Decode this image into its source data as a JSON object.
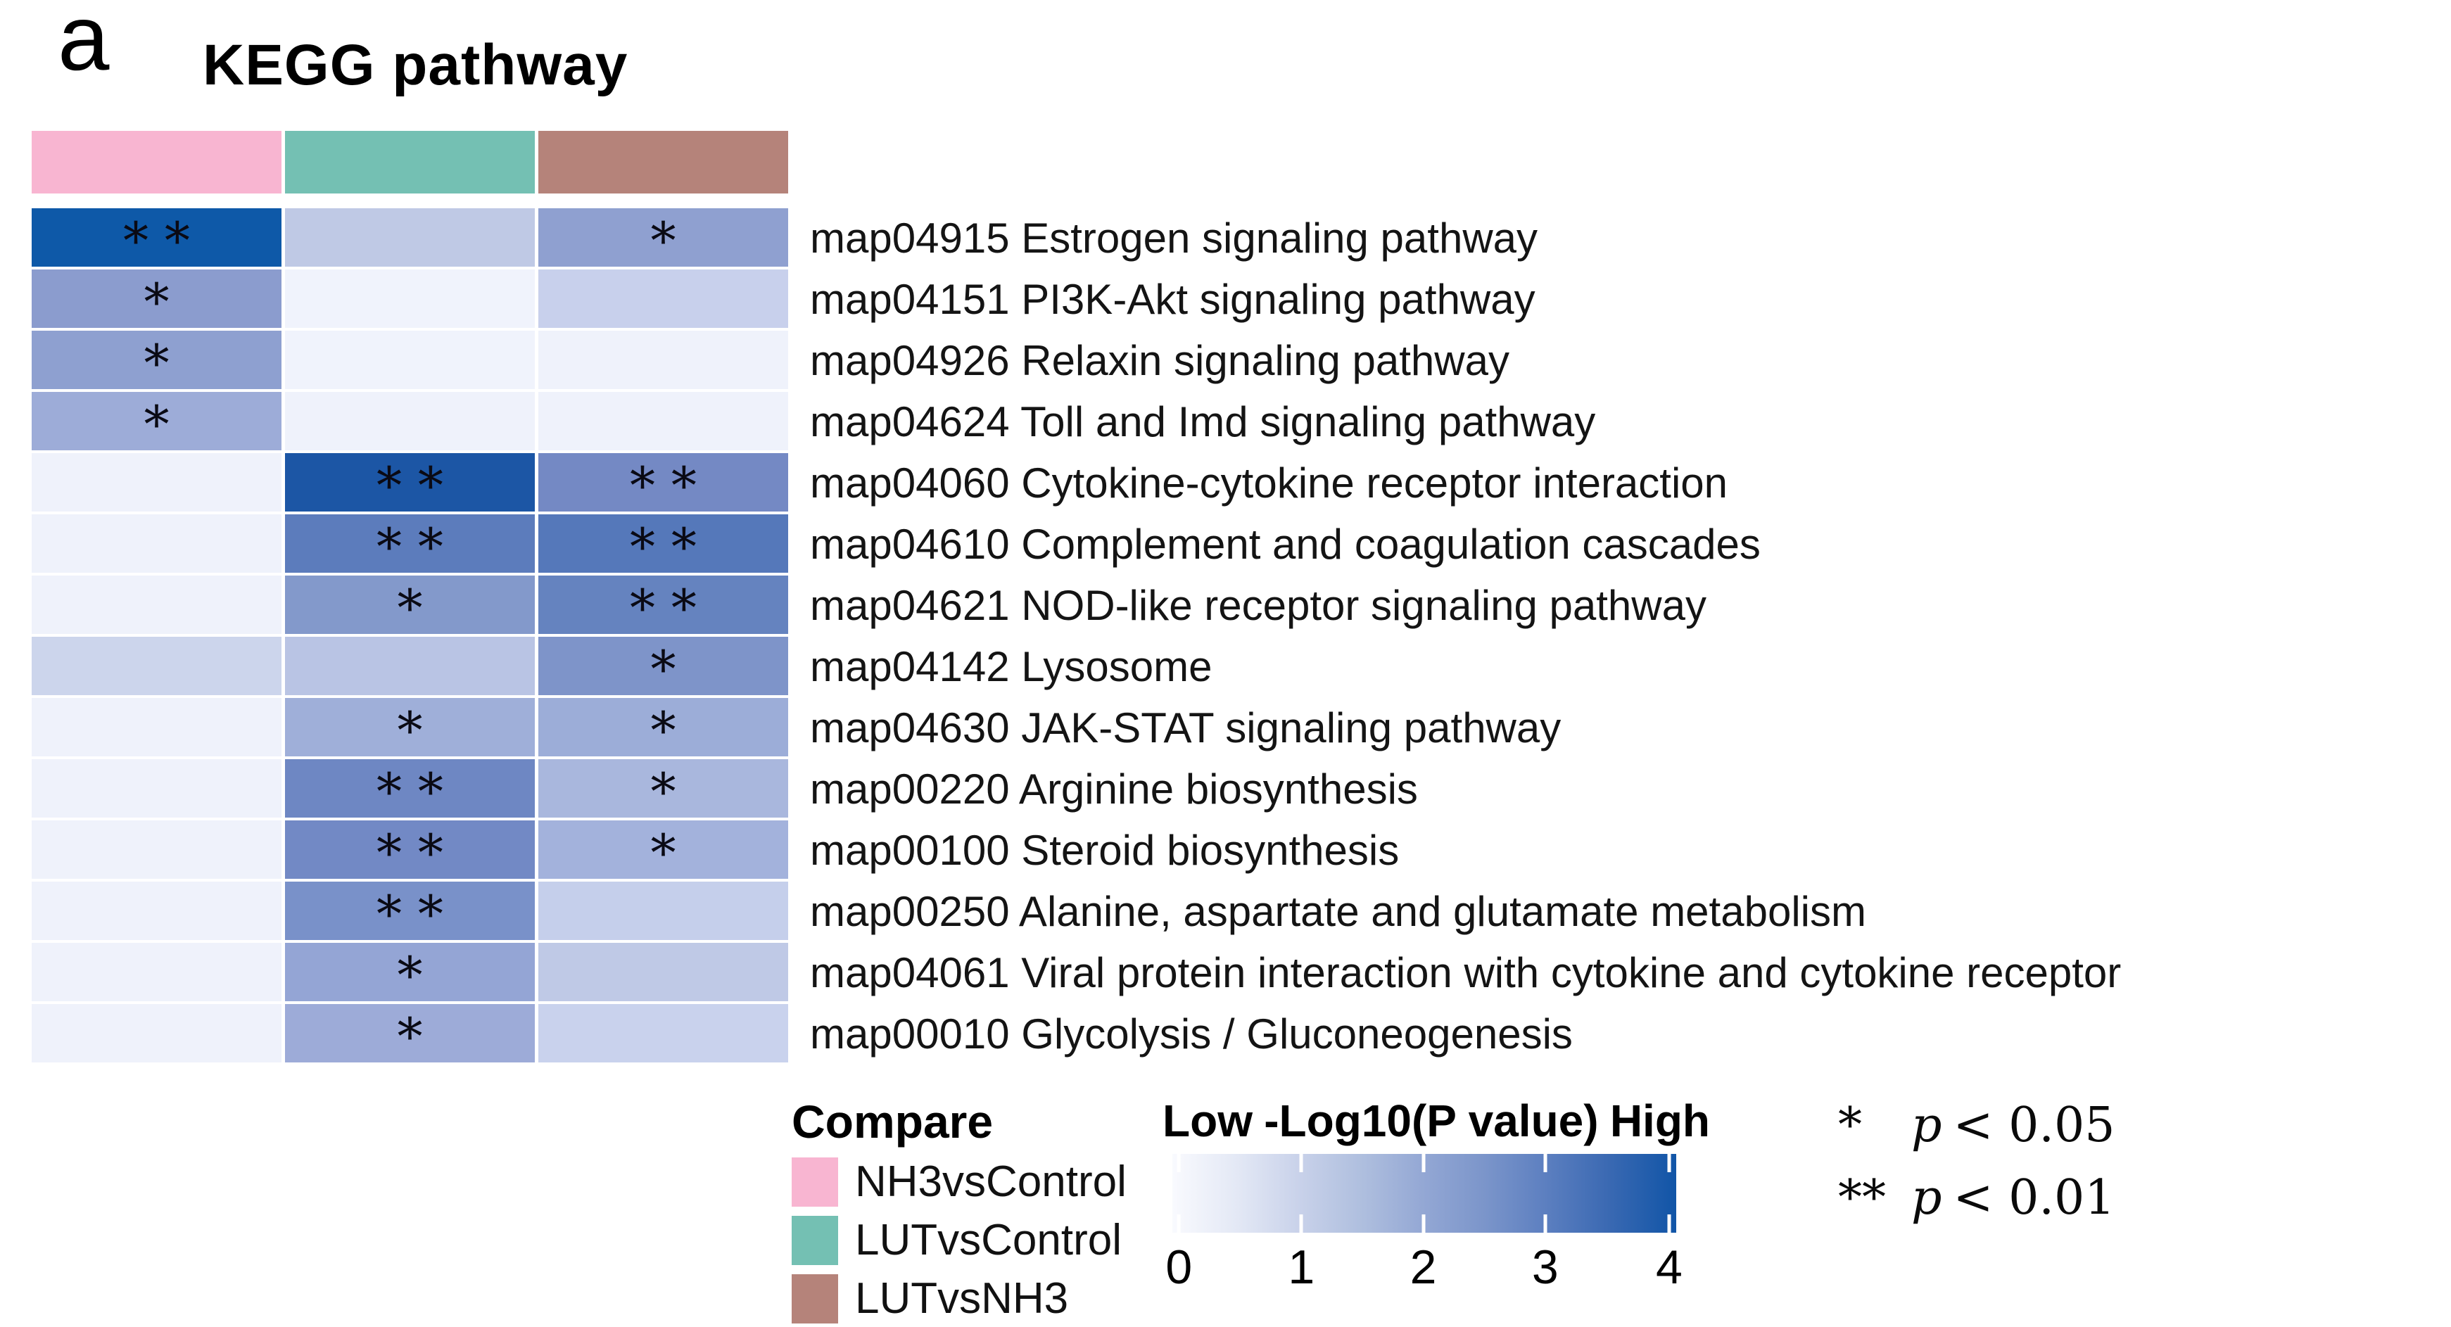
{
  "panel_label": "a",
  "title": "KEGG pathway",
  "columns": [
    {
      "name": "NH3vsControl",
      "color": "#F8B5D1"
    },
    {
      "name": "LUTvsControl",
      "color": "#74C0B3"
    },
    {
      "name": "LUTvsNH3",
      "color": "#B5837A"
    }
  ],
  "heatmap_rows": [
    {
      "label": "map04915 Estrogen signaling pathway",
      "colors": [
        "#0E59A8",
        "#BFC9E5",
        "#8FA0D0"
      ],
      "markers": [
        "**",
        "",
        "*"
      ]
    },
    {
      "label": "map04151 PI3K-Akt signaling pathway",
      "colors": [
        "#8B9CCE",
        "#F0F3FC",
        "#C8D0EC"
      ],
      "markers": [
        "*",
        "",
        ""
      ]
    },
    {
      "label": "map04926 Relaxin signaling pathway",
      "colors": [
        "#8EA0D0",
        "#F0F3FC",
        "#EFF2FB"
      ],
      "markers": [
        "*",
        "",
        ""
      ]
    },
    {
      "label": "map04624 Toll and Imd signaling pathway",
      "colors": [
        "#9DACD8",
        "#EFF2FB",
        "#EFF2FB"
      ],
      "markers": [
        "*",
        "",
        ""
      ]
    },
    {
      "label": "map04060 Cytokine-cytokine receptor interaction",
      "colors": [
        "#EFF2FB",
        "#1C56A5",
        "#7489C4"
      ],
      "markers": [
        "",
        "**",
        "**"
      ]
    },
    {
      "label": "map04610 Complement and coagulation cascades",
      "colors": [
        "#EFF2FB",
        "#5C7CBC",
        "#5578BA"
      ],
      "markers": [
        "",
        "**",
        "**"
      ]
    },
    {
      "label": "map04621 NOD-like receptor signaling pathway",
      "colors": [
        "#EFF2FB",
        "#8399CB",
        "#6583BF"
      ],
      "markers": [
        "",
        "*",
        "**"
      ]
    },
    {
      "label": "map04142 Lysosome",
      "colors": [
        "#CCD5EC",
        "#B9C4E4",
        "#7E94C9"
      ],
      "markers": [
        "",
        "",
        "*"
      ]
    },
    {
      "label": "map04630 JAK-STAT signaling pathway",
      "colors": [
        "#EFF2FB",
        "#9FAFD9",
        "#9CADD8"
      ],
      "markers": [
        "",
        "*",
        "*"
      ]
    },
    {
      "label": "map00220 Arginine biosynthesis",
      "colors": [
        "#EFF2FB",
        "#6E87C3",
        "#A9B7DD"
      ],
      "markers": [
        "",
        "**",
        "*"
      ]
    },
    {
      "label": "map00100 Steroid biosynthesis",
      "colors": [
        "#EFF2FB",
        "#7289C5",
        "#A3B2DC"
      ],
      "markers": [
        "",
        "**",
        "*"
      ]
    },
    {
      "label": "map00250 Alanine, aspartate and glutamate metabolism",
      "colors": [
        "#EFF2FB",
        "#7991C9",
        "#C5CFEB"
      ],
      "markers": [
        "",
        "**",
        ""
      ]
    },
    {
      "label": "map04061 Viral protein interaction with cytokine and cytokine receptor",
      "colors": [
        "#EFF2FB",
        "#94A5D5",
        "#BFC9E6"
      ],
      "markers": [
        "",
        "*",
        ""
      ]
    },
    {
      "label": "map00010 Glycolysis / Gluconeogenesis",
      "colors": [
        "#EFF2FB",
        "#9DABD8",
        "#C9D2ED"
      ],
      "markers": [
        "",
        "*",
        ""
      ]
    }
  ],
  "legend": {
    "title": "Compare"
  },
  "colorbar": {
    "low_label": "Low",
    "title": "-Log10(P value)",
    "high_label": "High",
    "ticks": [
      "0",
      "1",
      "2",
      "3",
      "4"
    ],
    "tick_positions_pct": [
      1.3,
      25.6,
      49.8,
      74.0,
      98.6
    ],
    "gradient_low": "#F9FAFE",
    "gradient_high": "#1155A7"
  },
  "significance_note": [
    {
      "stars": "*",
      "var": "p",
      "cond": "< 0.05"
    },
    {
      "stars": "**",
      "var": "p",
      "cond": "< 0.01"
    }
  ],
  "chart_data": {
    "type": "heatmap",
    "title": "KEGG pathway",
    "columns": [
      "NH3vsControl",
      "LUTvsControl",
      "LUTvsNH3"
    ],
    "rows": [
      "map04915 Estrogen signaling pathway",
      "map04151 PI3K-Akt signaling pathway",
      "map04926 Relaxin signaling pathway",
      "map04624 Toll and Imd signaling pathway",
      "map04060 Cytokine-cytokine receptor interaction",
      "map04610 Complement and coagulation cascades",
      "map04621 NOD-like receptor signaling pathway",
      "map04142 Lysosome",
      "map04630 JAK-STAT signaling pathway",
      "map00220 Arginine biosynthesis",
      "map00100 Steroid biosynthesis",
      "map00250 Alanine, aspartate and glutamate metabolism",
      "map04061 Viral protein interaction with cytokine and cytokine receptor",
      "map00010 Glycolysis / Gluconeogenesis"
    ],
    "values_neg_log10_p": [
      [
        4.0,
        1.0,
        1.8
      ],
      [
        1.8,
        0.1,
        0.8
      ],
      [
        1.8,
        0.1,
        0.1
      ],
      [
        1.6,
        0.1,
        0.1
      ],
      [
        0.1,
        3.8,
        2.3
      ],
      [
        0.1,
        2.8,
        2.9
      ],
      [
        0.1,
        2.0,
        2.6
      ],
      [
        0.7,
        1.2,
        2.1
      ],
      [
        0.1,
        1.5,
        1.6
      ],
      [
        0.1,
        2.4,
        1.4
      ],
      [
        0.1,
        2.3,
        1.4
      ],
      [
        0.1,
        2.2,
        0.8
      ],
      [
        0.1,
        1.7,
        0.8
      ],
      [
        0.1,
        1.5,
        0.8
      ]
    ],
    "significance": [
      [
        "**",
        "",
        "*"
      ],
      [
        "*",
        "",
        ""
      ],
      [
        "*",
        "",
        ""
      ],
      [
        "*",
        "",
        ""
      ],
      [
        "",
        "**",
        "**"
      ],
      [
        "",
        "**",
        "**"
      ],
      [
        "",
        "*",
        "**"
      ],
      [
        "",
        "",
        "*"
      ],
      [
        "",
        "*",
        "*"
      ],
      [
        "",
        "**",
        "*"
      ],
      [
        "",
        "**",
        "*"
      ],
      [
        "",
        "**",
        ""
      ],
      [
        "",
        "*",
        ""
      ],
      [
        "",
        "*",
        ""
      ]
    ],
    "value_label": "-Log10(P value)",
    "value_range": [
      0,
      4
    ],
    "colormap": {
      "low": "#F9FAFE",
      "high": "#1155A7"
    },
    "significance_levels": {
      "*": "p < 0.05",
      "**": "p < 0.01"
    },
    "legend_position": "bottom"
  }
}
